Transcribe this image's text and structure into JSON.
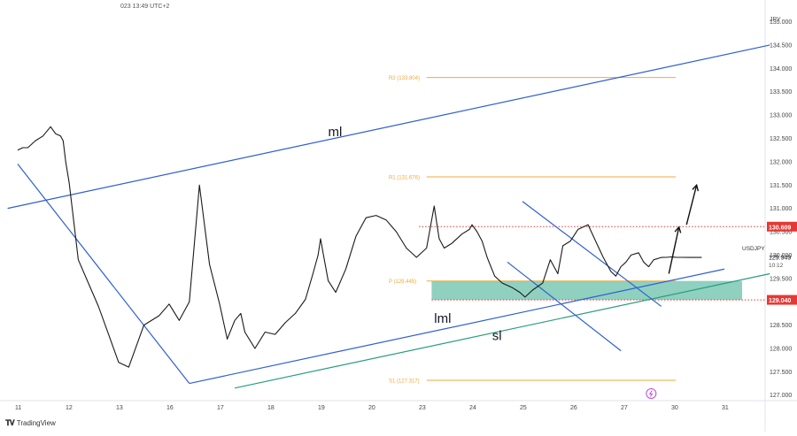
{
  "header": {
    "text": "023 13:49 UTC+2"
  },
  "footer": {
    "brand": "TradingView",
    "logo_icon": "tradingview-logo-icon"
  },
  "chart_data": {
    "type": "line",
    "symbol": "USDJPY",
    "currency": "JPY",
    "current_price": "129.949",
    "countdown": "10:12",
    "ylim": [
      126.9,
      135.2
    ],
    "y_ticks": [
      "135.000",
      "134.500",
      "134.000",
      "133.500",
      "133.000",
      "132.500",
      "132.000",
      "131.500",
      "131.000",
      "130.500",
      "130.000",
      "129.500",
      "129.000",
      "128.500",
      "128.000",
      "127.500",
      "127.000"
    ],
    "x_ticks": [
      "11",
      "12",
      "13",
      "16",
      "17",
      "18",
      "19",
      "20",
      "23",
      "24",
      "25",
      "26",
      "27",
      "30",
      "31"
    ],
    "price_path_x": [
      0,
      0.1,
      0.2,
      0.35,
      0.5,
      0.65,
      0.75,
      0.85,
      0.9,
      0.95,
      1.02,
      1.2,
      1.4,
      1.6,
      1.8,
      2.0,
      2.2,
      2.5,
      2.8,
      3.0,
      3.2,
      3.4,
      3.6,
      3.8,
      4.0,
      4.15,
      4.3,
      4.42,
      4.5,
      4.7,
      4.9,
      5.1,
      5.3,
      5.5,
      5.7,
      5.85,
      5.95,
      6.0,
      6.05,
      6.15,
      6.3,
      6.5,
      6.7,
      6.9,
      7.1,
      7.3,
      7.5,
      7.7,
      7.9,
      8.1,
      8.25,
      8.35,
      8.45,
      8.6,
      8.8,
      8.95,
      9.0,
      9.1,
      9.2,
      9.3,
      9.45,
      9.6,
      9.8,
      9.95,
      10.05,
      10.2,
      10.4,
      10.55,
      10.7,
      10.8,
      10.95,
      11.1,
      11.3,
      11.45,
      11.6,
      11.75,
      11.85,
      11.95,
      12.05,
      12.15,
      12.3,
      12.4,
      12.5,
      12.6,
      12.75,
      12.85,
      12.95,
      13.05,
      13.15,
      13.3,
      13.45,
      13.55
    ],
    "price_path_y": [
      132.25,
      132.3,
      132.3,
      132.45,
      132.55,
      132.75,
      132.6,
      132.55,
      132.45,
      132.0,
      131.55,
      129.9,
      129.4,
      128.9,
      128.3,
      127.7,
      127.6,
      128.5,
      128.7,
      128.95,
      128.6,
      129.0,
      131.5,
      129.8,
      128.95,
      128.2,
      128.6,
      128.75,
      128.35,
      128.0,
      128.35,
      128.3,
      128.55,
      128.75,
      129.05,
      129.6,
      130.0,
      130.35,
      130.05,
      129.45,
      129.2,
      129.7,
      130.4,
      130.8,
      130.85,
      130.75,
      130.5,
      130.15,
      129.95,
      130.15,
      131.05,
      130.35,
      130.15,
      130.25,
      130.45,
      130.55,
      130.65,
      130.5,
      130.3,
      129.95,
      129.55,
      129.4,
      129.3,
      129.2,
      129.1,
      129.25,
      129.4,
      129.9,
      129.6,
      130.2,
      130.3,
      130.55,
      130.65,
      130.3,
      129.95,
      129.65,
      129.55,
      129.75,
      129.85,
      130.0,
      130.05,
      129.85,
      129.75,
      129.9,
      129.949,
      129.95,
      129.96,
      129.95,
      129.95,
      129.949,
      129.95,
      129.949
    ],
    "annotations": [
      {
        "label": "ml",
        "x": 6.15,
        "y": 132.55
      },
      {
        "label": "lml",
        "x": 8.25,
        "y": 128.55
      },
      {
        "label": "sl",
        "x": 9.4,
        "y": 128.18
      }
    ],
    "pivot_levels": [
      {
        "label": "R2 (133.804)",
        "value": 133.804
      },
      {
        "label": "R1 (131.676)",
        "value": 131.676
      },
      {
        "label": "P (129.445)",
        "value": 129.445
      },
      {
        "label": "S1 (127.317)",
        "value": 127.317
      }
    ],
    "resistance_level": {
      "label": "130.609",
      "value": 130.609
    },
    "support_level": {
      "label": "129.040",
      "value": 129.04
    },
    "demand_zone": {
      "from": 129.04,
      "to": 129.445,
      "color": "#7bc8b4"
    },
    "lines": [
      {
        "name": "ml-line",
        "color": "#2f5fd0",
        "p1": [
          -0.2,
          131.0
        ],
        "p2": [
          14.9,
          134.5
        ]
      },
      {
        "name": "lml-line",
        "color": "#2f5fd0",
        "p1": [
          3.4,
          127.25
        ],
        "p2": [
          14.0,
          129.7
        ]
      },
      {
        "name": "sl-line",
        "color": "#2a9d7f",
        "p1": [
          4.3,
          127.15
        ],
        "p2": [
          14.9,
          129.6
        ]
      },
      {
        "name": "downtrend-line",
        "color": "#2f5fd0",
        "p1": [
          0.0,
          131.95
        ],
        "p2": [
          3.4,
          127.25
        ]
      },
      {
        "name": "channel-upper",
        "color": "#2f5fd0",
        "p1": [
          10.0,
          131.15
        ],
        "p2": [
          12.75,
          128.9
        ]
      },
      {
        "name": "channel-lower",
        "color": "#2f5fd0",
        "p1": [
          9.7,
          129.85
        ],
        "p2": [
          11.95,
          127.95
        ]
      }
    ],
    "arrows": [
      {
        "name": "arrow-up-1",
        "from": [
          12.9,
          129.6
        ],
        "to": [
          13.1,
          130.6
        ]
      },
      {
        "name": "arrow-up-2",
        "from": [
          13.25,
          130.65
        ],
        "to": [
          13.45,
          131.5
        ]
      }
    ],
    "event_icon": "lightning-icon",
    "colors": {
      "pivot": "#f2a93b",
      "resistance": "#e53935",
      "last_price_bg": "#2962ff",
      "text_dark": "#131722"
    }
  }
}
